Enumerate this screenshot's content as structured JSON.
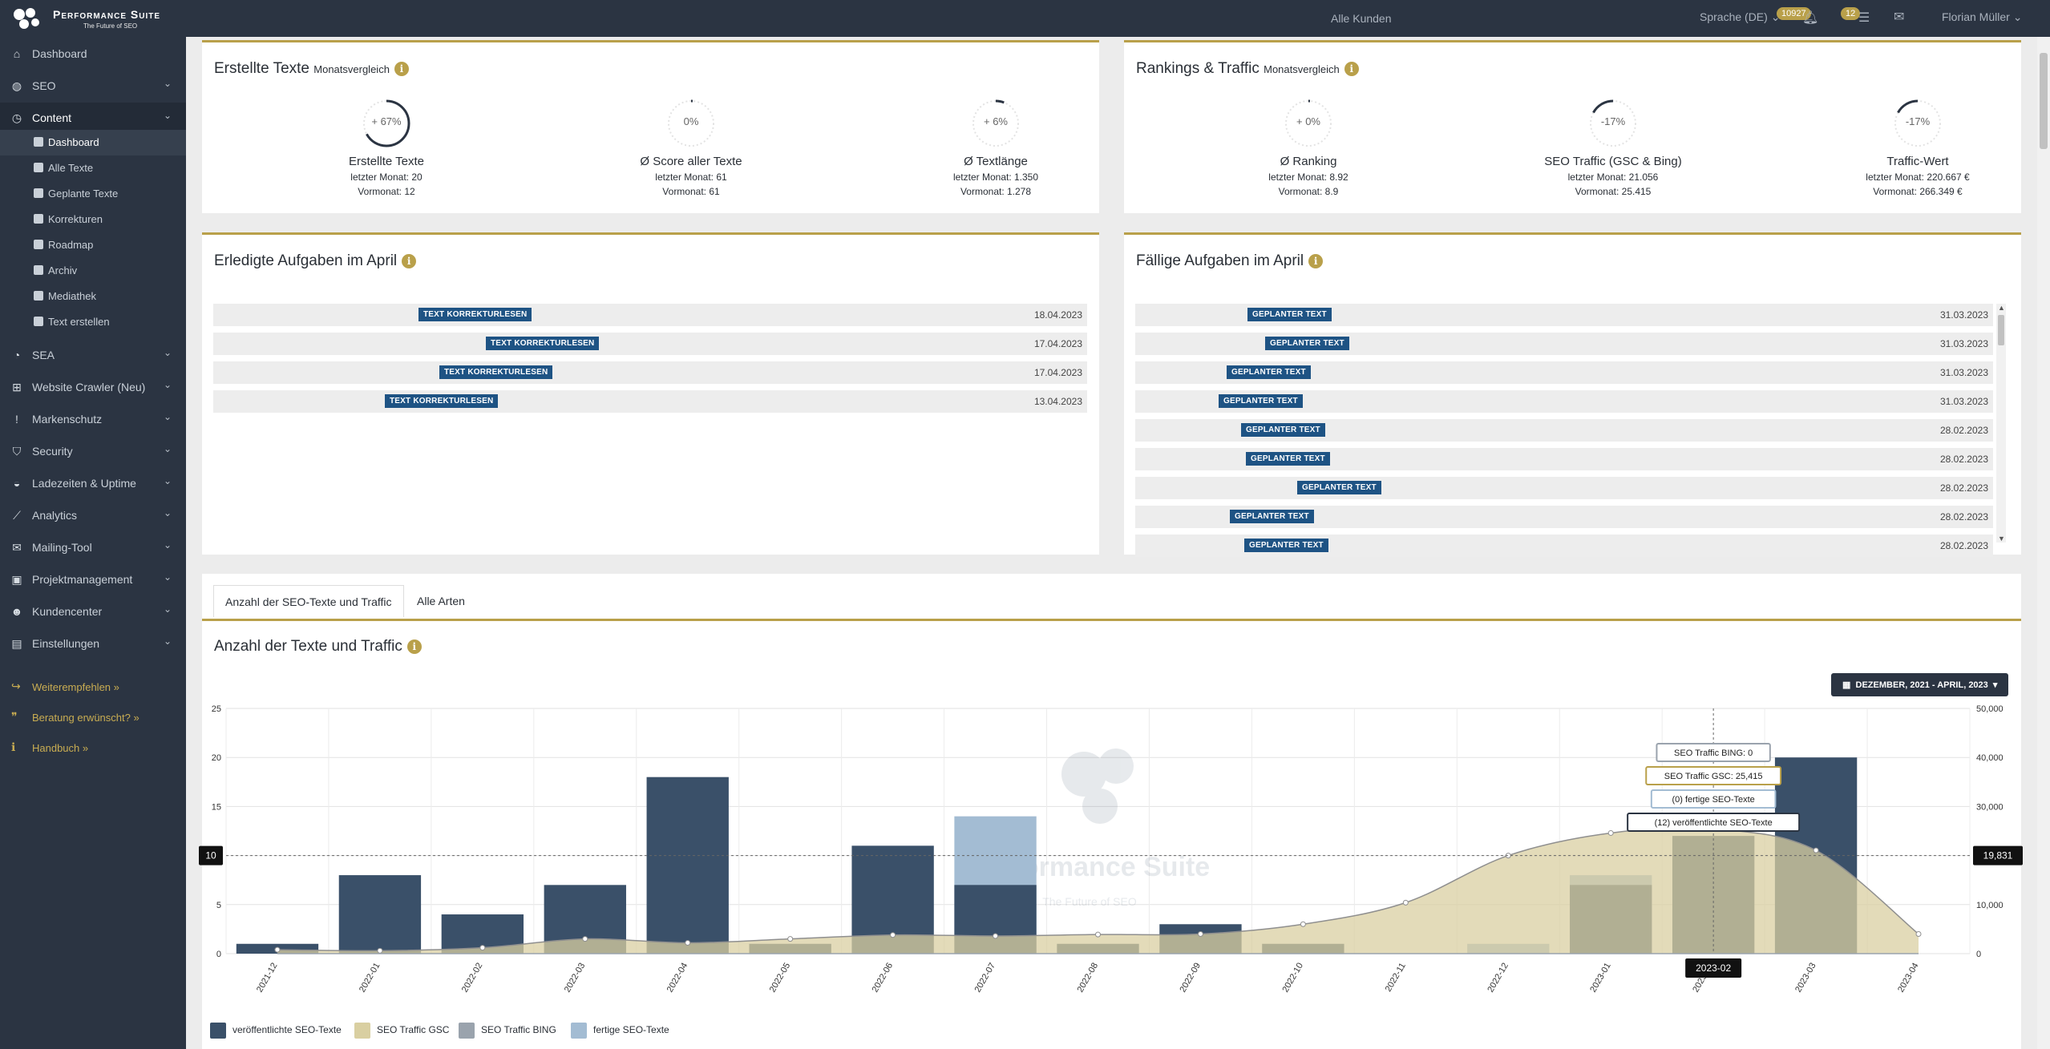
{
  "app": {
    "logo_title": "Performance Suite",
    "logo_tagline": "The Future of SEO",
    "customer_filter": "Alle Kunden",
    "language": "Sprache (DE)",
    "badge_count_1": "10927",
    "badge_count_2": "12",
    "user_name": "Florian Müller"
  },
  "sidebar": {
    "items": [
      {
        "label": "Dashboard",
        "icon": "home-icon"
      },
      {
        "label": "SEO",
        "icon": "globe-icon"
      },
      {
        "label": "Content",
        "icon": "clock-icon"
      },
      {
        "label": "SEA",
        "icon": "pie-chart-icon"
      },
      {
        "label": "Website Crawler (Neu)",
        "icon": "sitemap-icon"
      },
      {
        "label": "Markenschutz",
        "icon": "exclamation-icon"
      },
      {
        "label": "Security",
        "icon": "shield-icon"
      },
      {
        "label": "Ladezeiten & Uptime",
        "icon": "dashboard-icon"
      },
      {
        "label": "Analytics",
        "icon": "line-chart-icon"
      },
      {
        "label": "Mailing-Tool",
        "icon": "envelope-icon"
      },
      {
        "label": "Projektmanagement",
        "icon": "briefcase-icon"
      },
      {
        "label": "Kundencenter",
        "icon": "users-icon"
      },
      {
        "label": "Einstellungen",
        "icon": "lock-icon"
      }
    ],
    "content_sub": [
      "Dashboard",
      "Alle Texte",
      "Geplante Texte",
      "Korrekturen",
      "Roadmap",
      "Archiv",
      "Mediathek",
      "Text erstellen"
    ],
    "promos": [
      {
        "label": "Weiterempfehlen »",
        "icon": "share-icon"
      },
      {
        "label": "Beratung erwünscht? »",
        "icon": "comments-icon"
      },
      {
        "label": "Handbuch »",
        "icon": "info-icon"
      }
    ]
  },
  "texts_panel": {
    "title": "Erstellte Texte",
    "subtitle": "Monatsvergleich",
    "stats": [
      {
        "value": "+ 67%",
        "title": "Erstellte Texte",
        "last": "letzter Monat: 20",
        "prev": "Vormonat: 12",
        "fill": 0.67
      },
      {
        "value": "0%",
        "title": "Ø Score aller Texte",
        "last": "letzter Monat: 61",
        "prev": "Vormonat: 61",
        "fill": 0.0
      },
      {
        "value": "+ 6%",
        "title": "Ø Textlänge",
        "last": "letzter Monat: 1.350",
        "prev": "Vormonat: 1.278",
        "fill": 0.06
      }
    ]
  },
  "rankings_panel": {
    "title": "Rankings & Traffic",
    "subtitle": "Monatsvergleich",
    "stats": [
      {
        "value": "+ 0%",
        "title": "Ø Ranking",
        "last": "letzter Monat: 8.92",
        "prev": "Vormonat: 8.9",
        "fill": 0.0
      },
      {
        "value": "-17%",
        "title": "SEO Traffic (GSC & Bing)",
        "last": "letzter Monat: 21.056",
        "prev": "Vormonat: 25.415",
        "fill": -0.17
      },
      {
        "value": "-17%",
        "title": "Traffic-Wert",
        "last": "letzter Monat: 220.667 €",
        "prev": "Vormonat: 266.349 €",
        "fill": -0.17
      }
    ]
  },
  "done_tasks": {
    "title": "Erledigte Aufgaben im April",
    "rows": [
      {
        "tag": "TEXT KORREKTURLESEN",
        "date": "18.04.2023"
      },
      {
        "tag": "TEXT KORREKTURLESEN",
        "date": "17.04.2023"
      },
      {
        "tag": "TEXT KORREKTURLESEN",
        "date": "17.04.2023"
      },
      {
        "tag": "TEXT KORREKTURLESEN",
        "date": "13.04.2023"
      }
    ]
  },
  "due_tasks": {
    "title": "Fällige Aufgaben im April",
    "rows": [
      {
        "tag": "GEPLANTER TEXT",
        "date": "31.03.2023"
      },
      {
        "tag": "GEPLANTER TEXT",
        "date": "31.03.2023"
      },
      {
        "tag": "GEPLANTER TEXT",
        "date": "31.03.2023"
      },
      {
        "tag": "GEPLANTER TEXT",
        "date": "31.03.2023"
      },
      {
        "tag": "GEPLANTER TEXT",
        "date": "28.02.2023"
      },
      {
        "tag": "GEPLANTER TEXT",
        "date": "28.02.2023"
      },
      {
        "tag": "GEPLANTER TEXT",
        "date": "28.02.2023"
      },
      {
        "tag": "GEPLANTER TEXT",
        "date": "28.02.2023"
      },
      {
        "tag": "GEPLANTER TEXT",
        "date": "28.02.2023"
      }
    ]
  },
  "chart_section": {
    "tabs": [
      "Anzahl der SEO-Texte und Traffic",
      "Alle Arten"
    ],
    "title": "Anzahl der Texte und Traffic",
    "range_button": "DEZEMBER, 2021 - APRIL, 2023",
    "cursor_left": "10",
    "cursor_right": "19,831",
    "cursor_x": "2023-02",
    "tooltips": [
      "SEO Traffic BING: 0",
      "SEO Traffic GSC: 25,415",
      "(0) fertige SEO-Texte",
      "(12) veröffentlichte SEO-Texte"
    ],
    "watermark_title": "Performance Suite",
    "watermark_tagline": "The Future of SEO"
  },
  "chart_data": {
    "type": "bar",
    "categories": [
      "2021-12",
      "2022-01",
      "2022-02",
      "2022-03",
      "2022-04",
      "2022-05",
      "2022-06",
      "2022-07",
      "2022-08",
      "2022-09",
      "2022-10",
      "2022-11",
      "2022-12",
      "2023-01",
      "2023-02",
      "2023-03",
      "2023-04"
    ],
    "series": [
      {
        "name": "veröffentlichte SEO-Texte",
        "type": "bar",
        "axis": "left",
        "color": "#3a5069",
        "values": [
          1,
          8,
          4,
          7,
          18,
          1,
          11,
          7,
          1,
          3,
          1,
          0,
          0,
          7,
          12,
          20,
          0
        ]
      },
      {
        "name": "fertige SEO-Texte",
        "type": "bar",
        "axis": "left",
        "color": "#a3bcd3",
        "values": [
          0,
          0,
          0,
          0,
          0,
          0,
          0,
          14,
          0,
          0,
          0,
          0,
          1,
          8,
          0,
          0,
          0
        ]
      },
      {
        "name": "SEO Traffic GSC",
        "type": "area",
        "axis": "right",
        "color": "#d9cfa1",
        "values": [
          800,
          600,
          1200,
          3000,
          2200,
          3000,
          3800,
          3600,
          3900,
          4000,
          6000,
          10400,
          20000,
          24600,
          25415,
          21056,
          4000
        ]
      },
      {
        "name": "SEO Traffic BING",
        "type": "line",
        "axis": "right",
        "color": "#9aa3ad",
        "values": [
          0,
          0,
          0,
          0,
          0,
          0,
          0,
          0,
          0,
          0,
          0,
          0,
          0,
          0,
          0,
          0,
          0
        ]
      }
    ],
    "ylim_left": [
      0,
      25
    ],
    "yticks_left": [
      0,
      5,
      10,
      15,
      20,
      25
    ],
    "ylim_right": [
      0,
      50000
    ],
    "yticks_right": [
      "0",
      "10,000",
      "20,000",
      "30,000",
      "40,000",
      "50,000"
    ],
    "grid": true,
    "legend_position": "bottom-left"
  }
}
